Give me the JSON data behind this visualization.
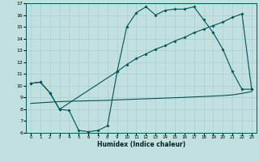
{
  "xlabel": "Humidex (Indice chaleur)",
  "bg_color": "#c2e0e0",
  "grid_color": "#a8d0d0",
  "line_color": "#005555",
  "xlim": [
    -0.5,
    23.5
  ],
  "ylim": [
    6,
    17
  ],
  "xticks": [
    0,
    1,
    2,
    3,
    4,
    5,
    6,
    7,
    8,
    9,
    10,
    11,
    12,
    13,
    14,
    15,
    16,
    17,
    18,
    19,
    20,
    21,
    22,
    23
  ],
  "yticks": [
    6,
    7,
    8,
    9,
    10,
    11,
    12,
    13,
    14,
    15,
    16,
    17
  ],
  "line1_x": [
    0,
    1,
    2,
    3,
    4,
    5,
    6,
    7,
    8,
    9,
    10,
    11,
    12,
    13,
    14,
    15,
    16,
    17,
    18,
    19,
    20,
    21,
    22,
    23
  ],
  "line1_y": [
    10.2,
    10.3,
    9.4,
    8.0,
    7.9,
    6.2,
    6.1,
    6.2,
    6.6,
    11.2,
    15.0,
    16.2,
    16.7,
    16.0,
    16.4,
    16.5,
    16.5,
    16.7,
    15.6,
    14.5,
    13.1,
    11.2,
    9.7,
    9.7
  ],
  "line2_x": [
    0,
    1,
    2,
    3,
    9,
    10,
    11,
    12,
    13,
    14,
    15,
    16,
    17,
    18,
    19,
    20,
    21,
    22,
    23
  ],
  "line2_y": [
    10.2,
    10.3,
    9.4,
    8.0,
    11.2,
    11.8,
    12.3,
    12.7,
    13.1,
    13.4,
    13.8,
    14.1,
    14.5,
    14.8,
    15.1,
    15.4,
    15.8,
    16.1,
    9.7
  ],
  "line3_x": [
    0,
    1,
    2,
    3,
    4,
    5,
    6,
    7,
    8,
    9,
    10,
    11,
    12,
    13,
    14,
    15,
    16,
    17,
    18,
    19,
    20,
    21,
    22,
    23
  ],
  "line3_y": [
    8.5,
    8.55,
    8.6,
    8.65,
    8.68,
    8.7,
    8.72,
    8.74,
    8.76,
    8.8,
    8.83,
    8.86,
    8.89,
    8.92,
    8.95,
    8.98,
    9.01,
    9.05,
    9.08,
    9.12,
    9.16,
    9.22,
    9.35,
    9.5
  ]
}
